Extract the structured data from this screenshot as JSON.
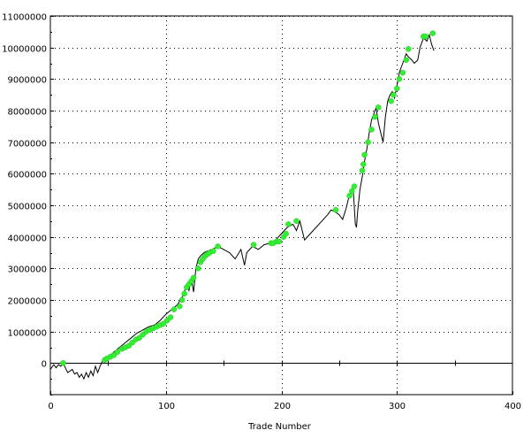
{
  "chart_data": {
    "type": "line",
    "title": "",
    "xlabel": "Trade Number",
    "ylabel": "",
    "xlim": [
      0,
      400
    ],
    "ylim": [
      -1000000,
      11000000
    ],
    "x_ticks": [
      0,
      100,
      200,
      300,
      400
    ],
    "y_ticks": [
      0,
      1000000,
      2000000,
      3000000,
      4000000,
      5000000,
      6000000,
      7000000,
      8000000,
      9000000,
      10000000,
      11000000
    ],
    "x_tick_labels": [
      "0",
      "100",
      "200",
      "300",
      "400"
    ],
    "y_tick_labels": [
      "0",
      "1000000",
      "2000000",
      "3000000",
      "4000000",
      "5000000",
      "6000000",
      "7000000",
      "8000000",
      "9000000",
      "10000000",
      "11000000"
    ],
    "grid": "dotted",
    "colors": {
      "line": "#000000",
      "marker": "#33ee33",
      "grid": "#000000",
      "background": "#ffffff"
    },
    "series": [
      {
        "values_x": [
          0,
          3,
          5,
          7,
          9,
          11,
          13,
          15,
          17,
          19,
          21,
          23,
          25,
          27,
          29,
          31,
          33,
          35,
          37,
          39,
          41,
          43,
          45,
          47,
          50,
          55,
          60,
          65,
          70,
          75,
          80,
          85,
          90,
          95,
          100,
          105,
          110,
          115,
          118,
          120,
          122,
          124,
          126,
          128,
          130,
          133,
          136,
          140,
          145,
          150,
          155,
          160,
          165,
          168,
          170,
          175,
          180,
          185,
          190,
          195,
          200,
          205,
          210,
          213,
          216,
          220,
          225,
          230,
          235,
          240,
          243,
          246,
          250,
          253,
          256,
          258,
          260,
          262,
          263,
          264,
          265,
          266,
          268,
          270,
          272,
          274,
          276,
          278,
          280,
          282,
          284,
          286,
          288,
          290,
          292,
          294,
          296,
          298,
          300,
          302,
          305,
          308,
          310,
          313,
          315,
          318,
          320,
          323,
          326,
          328,
          330,
          332
        ],
        "values_y": [
          -200000,
          -50000,
          -150000,
          -50000,
          -100000,
          0,
          -150000,
          -300000,
          -250000,
          -200000,
          -350000,
          -300000,
          -450000,
          -350000,
          -500000,
          -300000,
          -450000,
          -250000,
          -400000,
          -100000,
          -300000,
          -100000,
          50000,
          100000,
          200000,
          350000,
          500000,
          650000,
          800000,
          950000,
          1050000,
          1150000,
          1200000,
          1350000,
          1550000,
          1700000,
          1850000,
          2150000,
          2500000,
          2300000,
          2700000,
          2250000,
          3000000,
          3300000,
          3400000,
          3500000,
          3550000,
          3600000,
          3700000,
          3600000,
          3500000,
          3300000,
          3600000,
          3100000,
          3500000,
          3700000,
          3600000,
          3750000,
          3800000,
          3900000,
          4100000,
          4300000,
          4400000,
          4200000,
          4500000,
          3900000,
          4100000,
          4300000,
          4500000,
          4700000,
          4850000,
          4800000,
          4700000,
          4550000,
          4900000,
          5200000,
          5400000,
          5600000,
          5000000,
          4400000,
          4300000,
          4800000,
          5500000,
          5900000,
          6400000,
          6800000,
          7300000,
          7700000,
          7900000,
          8100000,
          7600000,
          7300000,
          7000000,
          7800000,
          8300000,
          8500000,
          8600000,
          8400000,
          8800000,
          9200000,
          9500000,
          9800000,
          9700000,
          9600000,
          9500000,
          9600000,
          10000000,
          10300000,
          10200000,
          10400000,
          10100000,
          9900000
        ],
        "highs_x": [
          11,
          47,
          49,
          52,
          55,
          58,
          62,
          65,
          68,
          71,
          74,
          77,
          80,
          83,
          86,
          89,
          92,
          95,
          98,
          101,
          104,
          107,
          112,
          114,
          116,
          118,
          120,
          122,
          124,
          128,
          130,
          132,
          134,
          136,
          138,
          141,
          145,
          176,
          191,
          193,
          196,
          198,
          202,
          204,
          206,
          213,
          247,
          259,
          261,
          263,
          270,
          271,
          272,
          275,
          278,
          281,
          284,
          295,
          297,
          300,
          302,
          305,
          308,
          310,
          323,
          325,
          331
        ],
        "highs_y": [
          0,
          100000,
          150000,
          200000,
          250000,
          350000,
          450000,
          500000,
          550000,
          650000,
          750000,
          800000,
          900000,
          1000000,
          1050000,
          1100000,
          1150000,
          1200000,
          1250000,
          1350000,
          1450000,
          1700000,
          1800000,
          2000000,
          2200000,
          2400000,
          2500000,
          2600000,
          2700000,
          3000000,
          3200000,
          3300000,
          3400000,
          3450000,
          3500000,
          3550000,
          3700000,
          3750000,
          3800000,
          3800000,
          3850000,
          3850000,
          4000000,
          4100000,
          4400000,
          4500000,
          4850000,
          5300000,
          5450000,
          5600000,
          6100000,
          6300000,
          6600000,
          7000000,
          7400000,
          7800000,
          8100000,
          8300000,
          8500000,
          8700000,
          9000000,
          9200000,
          9600000,
          9950000,
          10350000,
          10350000,
          10450000
        ]
      }
    ]
  }
}
